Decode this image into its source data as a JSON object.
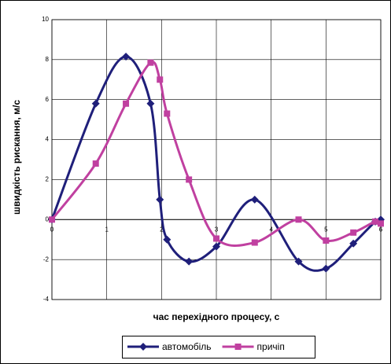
{
  "chart_data": {
    "type": "line",
    "x_label": "час перехідного процесу, с",
    "y_label": "швидкість рискання, м/с",
    "xlim": [
      0,
      6
    ],
    "xticks": [
      0,
      1,
      2,
      3,
      4,
      5,
      6
    ],
    "ylim": [
      -4,
      10
    ],
    "yticks": [
      -4,
      -2,
      0,
      2,
      4,
      6,
      8,
      10
    ],
    "grid": true,
    "legend": "bottom",
    "smooth": true,
    "series": [
      {
        "name": "автомобіль",
        "color": "#1f1f7a",
        "marker": "diamond",
        "x": [
          0,
          0.8,
          1.35,
          1.8,
          1.97,
          2.1,
          2.5,
          3.0,
          3.7,
          4.5,
          5.0,
          5.5,
          5.9,
          6.0
        ],
        "values": [
          0,
          5.8,
          8.15,
          5.8,
          1.0,
          -1.0,
          -2.1,
          -1.35,
          1.0,
          -2.1,
          -2.45,
          -1.2,
          -0.1,
          0
        ]
      },
      {
        "name": "причіп",
        "color": "#c040a0",
        "marker": "square",
        "x": [
          0,
          0.8,
          1.35,
          1.8,
          1.97,
          2.1,
          2.5,
          3.0,
          3.7,
          4.5,
          5.0,
          5.5,
          5.9,
          6.0
        ],
        "values": [
          0,
          2.8,
          5.8,
          7.85,
          7.0,
          5.3,
          2.0,
          -0.95,
          -1.15,
          0.0,
          -1.05,
          -0.65,
          -0.1,
          -0.2
        ]
      }
    ]
  }
}
